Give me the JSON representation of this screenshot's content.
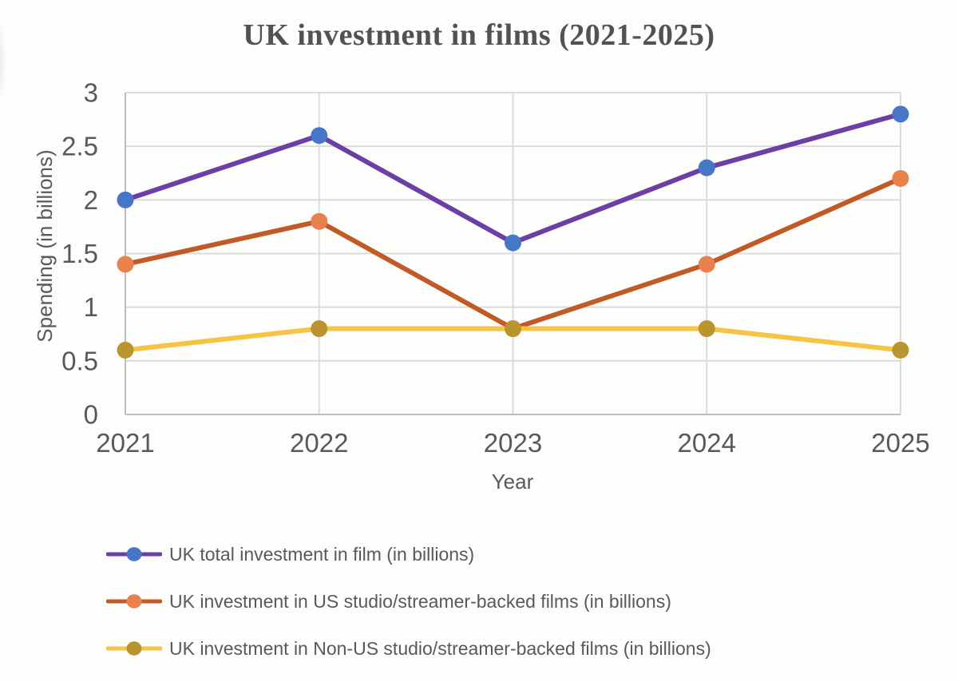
{
  "chart_data": {
    "type": "line",
    "title": "UK investment in films (2021-2025)",
    "xlabel": "Year",
    "ylabel": "Spending (in billions)",
    "categories": [
      "2021",
      "2022",
      "2023",
      "2024",
      "2025"
    ],
    "yticks": [
      0,
      0.5,
      1,
      1.5,
      2,
      2.5,
      3
    ],
    "ylim": [
      0,
      3
    ],
    "grid": true,
    "legend_position": "bottom-left",
    "series": [
      {
        "name": "UK total investment in film (in billions)",
        "values": [
          2.0,
          2.6,
          1.6,
          2.3,
          2.8
        ],
        "line_color": "#6c3fa4",
        "marker_color": "#4876c6"
      },
      {
        "name": "UK investment in US studio/streamer-backed films (in billions)",
        "values": [
          1.4,
          1.8,
          0.8,
          1.4,
          2.2
        ],
        "line_color": "#c25a28",
        "marker_color": "#e8814d"
      },
      {
        "name": "UK investment in Non-US studio/streamer-backed films (in billions)",
        "values": [
          0.6,
          0.8,
          0.8,
          0.8,
          0.6
        ],
        "line_color": "#f6c344",
        "marker_color": "#ba942e"
      }
    ],
    "style": {
      "grid_color": "#d9d9d9",
      "axis_color": "#bdbdbd",
      "text_color": "#595959",
      "title_color": "#525254",
      "background": "#fdfdfc",
      "line_width": 6,
      "marker_radius": 10.5
    }
  }
}
